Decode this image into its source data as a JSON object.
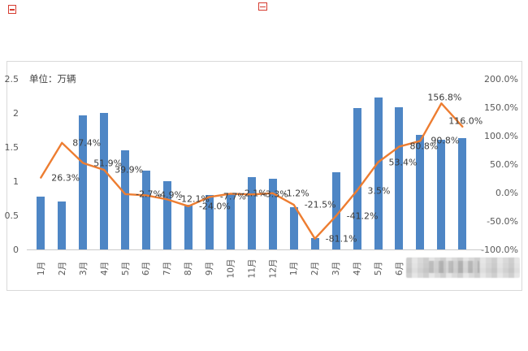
{
  "chart_data": {
    "type": "bar",
    "unit_label": "单位：万辆",
    "categories": [
      "1月",
      "2月",
      "3月",
      "4月",
      "5月",
      "6月",
      "7月",
      "8月",
      "9月",
      "10月",
      "11月",
      "12月",
      "1月",
      "2月",
      "3月",
      "4月",
      "5月",
      "6月",
      "",
      "",
      ""
    ],
    "series": [
      {
        "id": "volume-bars",
        "type": "bar",
        "axis": "left",
        "values": [
          0.77,
          0.7,
          1.97,
          2.0,
          1.45,
          1.15,
          1.0,
          0.65,
          0.8,
          0.82,
          1.06,
          1.04,
          0.62,
          0.17,
          1.13,
          2.07,
          2.23,
          2.08,
          1.68,
          1.61,
          1.63
        ]
      },
      {
        "id": "growth-line",
        "type": "line",
        "axis": "right",
        "values": [
          26.3,
          87.4,
          51.9,
          39.9,
          -2.7,
          -4.9,
          -12.1,
          -24.0,
          -7.7,
          -2.1,
          -3.3,
          -1.2,
          -21.5,
          -81.1,
          -41.2,
          3.5,
          53.4,
          80.8,
          90.8,
          156.8,
          116.0
        ],
        "labels": [
          "26.3%",
          "87.4%",
          "51.9%",
          "39.9%",
          "-2.7%",
          "-4.9%",
          "-12.1%",
          "-24.0%",
          "-7.7%",
          "-2.1%",
          "-3.3%",
          "-1.2%",
          "-21.5%",
          "-81.1%",
          "-41.2%",
          "3.5%",
          "53.4%",
          "80.8%",
          "90.8%",
          "156.8%",
          "116.0%"
        ]
      }
    ],
    "left_axis": {
      "ticks": [
        "2.5",
        "2",
        "1.5",
        "1",
        "0.5",
        "0"
      ],
      "range": [
        0,
        2.5
      ]
    },
    "right_axis": {
      "ticks": [
        "200.0%",
        "150.0%",
        "100.0%",
        "50.0%",
        "0.0%",
        "-50.0%",
        "-100.0%"
      ],
      "range": [
        -100,
        200
      ]
    },
    "legend": "none",
    "grid": false,
    "colors": {
      "bar": "#4e86c5",
      "line": "#ed7d31"
    }
  }
}
